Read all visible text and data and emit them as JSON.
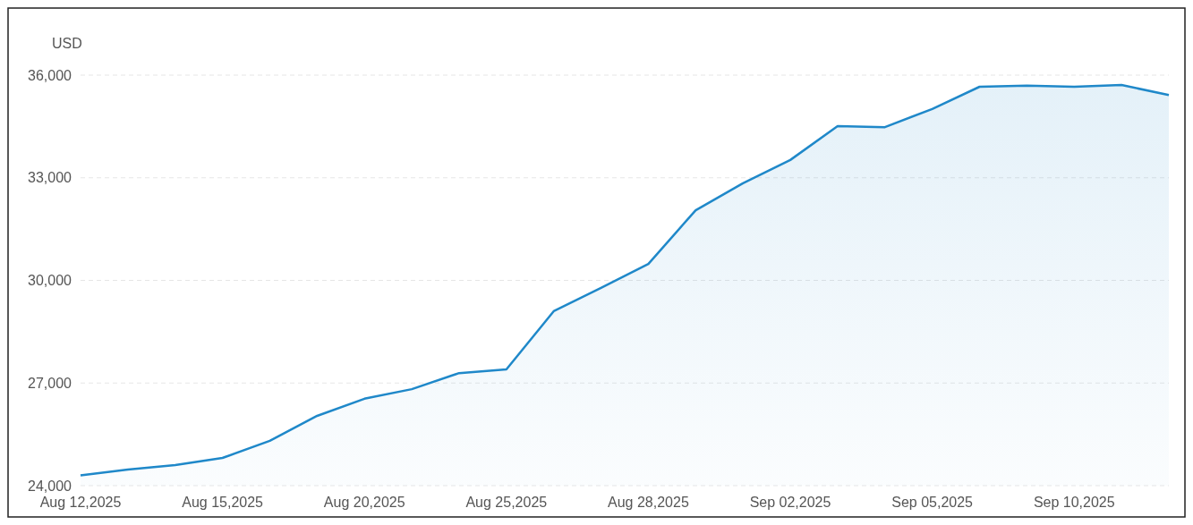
{
  "chart_data": {
    "type": "area",
    "ylabel": "USD",
    "categories": [
      "Aug 12,2025",
      null,
      null,
      "Aug 15,2025",
      null,
      null,
      "Aug 20,2025",
      null,
      null,
      "Aug 25,2025",
      null,
      null,
      "Aug 28,2025",
      null,
      null,
      "Sep 02,2025",
      null,
      null,
      "Sep 05,2025",
      null,
      null,
      "Sep 10,2025",
      null,
      null
    ],
    "series": [
      {
        "color": "#1f88c9",
        "values": [
          24300,
          24470,
          24600,
          24810,
          25310,
          26040,
          26540,
          26820,
          27290,
          27400,
          29100,
          29780,
          30480,
          32050,
          32840,
          33520,
          34510,
          34480,
          35010,
          35660,
          35690,
          35660,
          35710,
          35420
        ]
      }
    ],
    "ylim": [
      24000,
      36000
    ],
    "yticks": [
      {
        "value": 24000,
        "label": "24,000"
      },
      {
        "value": 27000,
        "label": "27,000"
      },
      {
        "value": 30000,
        "label": "30,000"
      },
      {
        "value": 33000,
        "label": "33,000"
      },
      {
        "value": 36000,
        "label": "36,000"
      }
    ],
    "grid": "y"
  }
}
